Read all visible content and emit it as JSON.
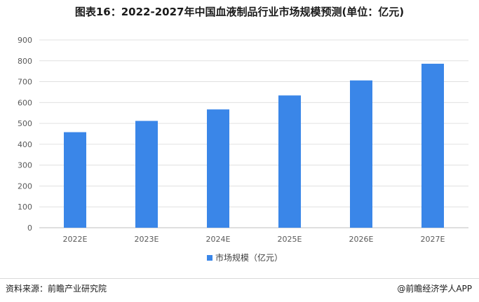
{
  "chart_data": {
    "type": "bar",
    "title": "图表16：2022-2027年中国血液制品行业市场规模预测(单位：亿元)",
    "categories": [
      "2022E",
      "2023E",
      "2024E",
      "2025E",
      "2026E",
      "2027E"
    ],
    "series": [
      {
        "name": "市场规模（亿元）",
        "values": [
          458,
          512,
          567,
          634,
          706,
          786
        ]
      }
    ],
    "ylim": [
      0,
      900
    ],
    "yticks": [
      0,
      100,
      200,
      300,
      400,
      500,
      600,
      700,
      800,
      900
    ],
    "grid": true,
    "legend": "bottom-center",
    "bar_color": "#3a86e8"
  },
  "footer": {
    "source": "资料来源：前瞻产业研究院",
    "brand": "@前瞻经济学人APP"
  }
}
